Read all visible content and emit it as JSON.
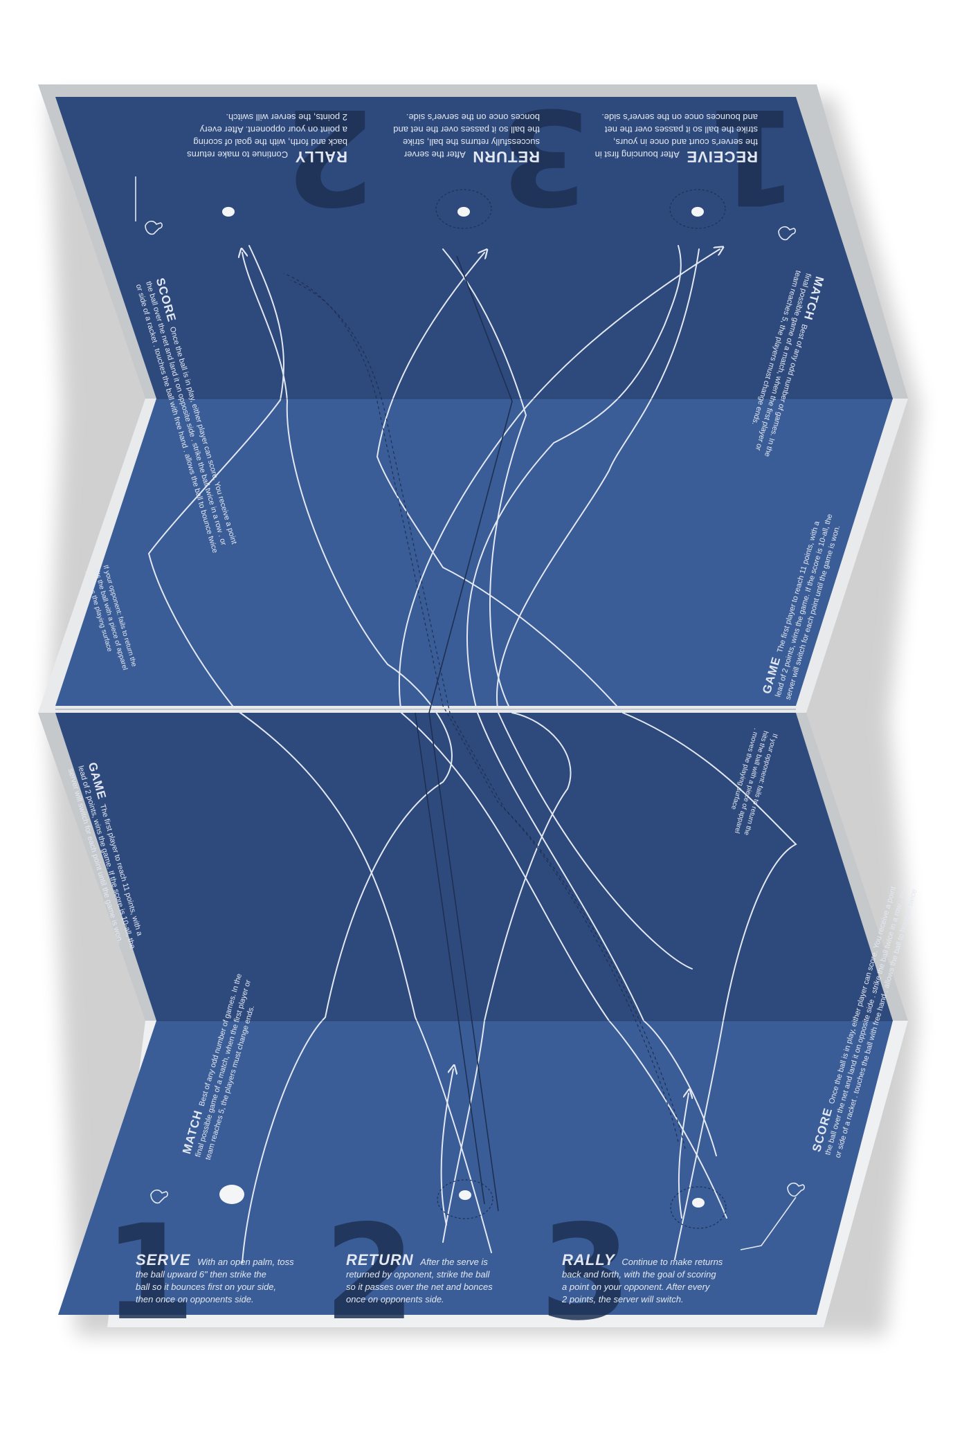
{
  "colors": {
    "paper": "#c9cccf",
    "panel_light": "#3a5d97",
    "panel_dark": "#2e4a7d",
    "numeral": "#1e3154",
    "ink": "#e3e8f2"
  },
  "bottom": {
    "n1": "1",
    "n2": "2",
    "n3": "3",
    "serve_title": "SERVE",
    "serve_l1": "With an open palm, toss",
    "serve_l2": "the ball upward 6\" then strike the",
    "serve_l3": "ball so it bounces first on your side,",
    "serve_l4": "then once on opponents side.",
    "return_title": "RETURN",
    "return_l1": "After the serve is",
    "return_l2": "returned by opponent, strike the ball",
    "return_l3": "so it passes over the net and bonces",
    "return_l4": "once on opponents side.",
    "rally_title": "RALLY",
    "rally_l1": "Continue to make returns",
    "rally_l2": "back and forth, with the goal of scoring",
    "rally_l3": "a point on your opponent. After every",
    "rally_l4": "2 points, the server will switch."
  },
  "top": {
    "n1": "1",
    "n2": "2",
    "n3": "3",
    "receive_title": "RECEIVE",
    "receive_l1": "After bouncing first in",
    "receive_l2": "the server's court and once in yours,",
    "receive_l3": "strike the ball so it passes over the net",
    "receive_l4": "and bounces once on the server's side.",
    "return_title": "RETURN",
    "return_l1": "After the server",
    "return_l2": "successfully returns the ball, strike",
    "return_l3": "the ball so it passes over the net and",
    "return_l4": "bonces once on the server's side.",
    "rally_title": "RALLY",
    "rally_l1": "Continue to make returns",
    "rally_l2": "back and forth, with the goal of scoring",
    "rally_l3": "a point on your opponent. After every",
    "rally_l4": "2 points, the server will switch."
  },
  "side": {
    "score_title": "SCORE",
    "score_l1": "Once the ball is in play, either player can score. You receive a point",
    "score_l2": "the ball over the net and land it on opposite side  .  strike the ball twice in a row  .  or",
    "score_l3": "or side of a racket  .  touches the ball with free hand  .  allows the ball to bounce twice",
    "score_l4": "If your opponent: fails to return the",
    "score_l5": "hits the ball with a piece of apparel",
    "score_l6": ".  moves the playing surface",
    "game_title": "GAME",
    "game_l1": "The first player to reach 11 points, with a",
    "game_l2": "lead of 2 points, wins the game. If the score is 10-all, the",
    "game_l3": "server will switch for each point until the game is won.",
    "match_title": "MATCH",
    "match_l1": "Best of any odd number of games. In the",
    "match_l2": "final possible game of a match, when the first player or",
    "match_l3": "team reaches 5, the players must change ends."
  }
}
